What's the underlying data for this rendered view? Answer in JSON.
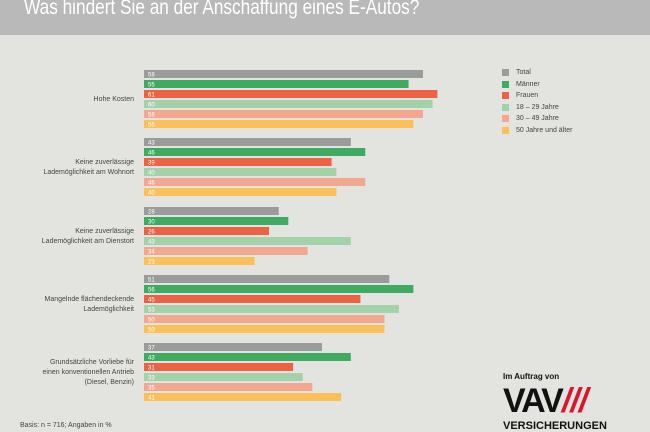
{
  "title": "Was hindert Sie an der Anschaffung eines E-Autos?",
  "basis": "Basis: n = 716; Angaben in %",
  "logo": {
    "prefix": "Im Auftrag von",
    "name": "VAV",
    "sub": "VERSICHERUNGEN"
  },
  "chart_data": {
    "type": "bar",
    "orientation": "horizontal",
    "title": "Was hindert Sie an der Anschaffung eines E-Autos?",
    "unit": "%",
    "legend_position": "right",
    "categories": [
      "Hohe Kosten",
      "Keine zuverlässige Lademöglichkeit am Wohnort",
      "Keine zuverlässige Lademöglichkeit am Dienstort",
      "Mangelnde flächendeckende Lademöglichkeit",
      "Grundsätzliche Vorliebe für einen konventionellen Antrieb (Diesel, Benzin)"
    ],
    "series": [
      {
        "name": "Total",
        "color": "#9b9b9b",
        "values": [
          58,
          43,
          28,
          51,
          37
        ]
      },
      {
        "name": "Männer",
        "color": "#3faa62",
        "values": [
          55,
          46,
          30,
          56,
          43
        ]
      },
      {
        "name": "Frauen",
        "color": "#ec6247",
        "values": [
          61,
          39,
          26,
          45,
          31
        ]
      },
      {
        "name": "18 – 29 Jahre",
        "color": "#a3d2aa",
        "values": [
          60,
          40,
          43,
          53,
          33
        ]
      },
      {
        "name": "30 – 49 Jahre",
        "color": "#f2a790",
        "values": [
          58,
          46,
          34,
          50,
          35
        ]
      },
      {
        "name": "50 Jahre und älter",
        "color": "#fbc05a",
        "values": [
          56,
          40,
          23,
          50,
          41
        ]
      }
    ]
  }
}
